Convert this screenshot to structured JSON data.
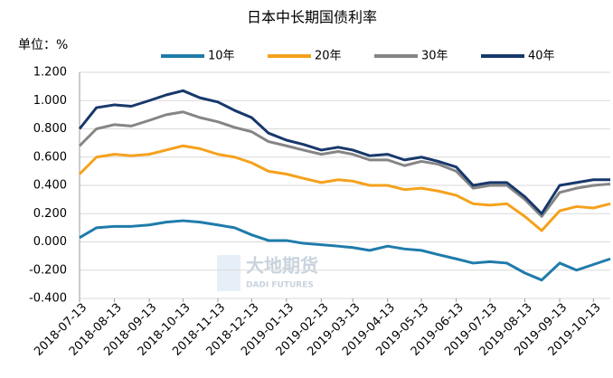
{
  "chart_data": {
    "type": "line",
    "title": "日本中长期国债利率",
    "y_unit": "单位：%",
    "watermark": [
      "大地期货",
      "DADI FUTURES"
    ],
    "x": [
      "2018-07-13",
      "2018-07-28",
      "2018-08-13",
      "2018-08-28",
      "2018-09-13",
      "2018-09-28",
      "2018-10-13",
      "2018-10-28",
      "2018-11-13",
      "2018-11-28",
      "2018-12-13",
      "2018-12-28",
      "2019-01-13",
      "2019-01-28",
      "2019-02-13",
      "2019-02-28",
      "2019-03-13",
      "2019-03-28",
      "2019-04-13",
      "2019-04-28",
      "2019-05-13",
      "2019-05-28",
      "2019-06-13",
      "2019-06-28",
      "2019-07-13",
      "2019-07-28",
      "2019-08-13",
      "2019-08-28",
      "2019-09-13",
      "2019-09-28",
      "2019-10-13",
      "2019-10-28"
    ],
    "series": [
      {
        "name": "10年",
        "color": "#1f7bab",
        "values": [
          0.03,
          0.1,
          0.11,
          0.11,
          0.12,
          0.14,
          0.15,
          0.14,
          0.12,
          0.1,
          0.05,
          0.01,
          0.01,
          -0.01,
          -0.02,
          -0.03,
          -0.04,
          -0.06,
          -0.03,
          -0.05,
          -0.06,
          -0.09,
          -0.12,
          -0.15,
          -0.14,
          -0.15,
          -0.22,
          -0.27,
          -0.15,
          -0.2,
          -0.16,
          -0.12
        ]
      },
      {
        "name": "20年",
        "color": "#f5a11c",
        "values": [
          0.48,
          0.6,
          0.62,
          0.61,
          0.62,
          0.65,
          0.68,
          0.66,
          0.62,
          0.6,
          0.56,
          0.5,
          0.48,
          0.45,
          0.42,
          0.44,
          0.43,
          0.4,
          0.4,
          0.37,
          0.38,
          0.36,
          0.33,
          0.27,
          0.26,
          0.27,
          0.18,
          0.08,
          0.22,
          0.25,
          0.24,
          0.27
        ]
      },
      {
        "name": "30年",
        "color": "#858585",
        "values": [
          0.68,
          0.8,
          0.83,
          0.82,
          0.86,
          0.9,
          0.92,
          0.88,
          0.85,
          0.81,
          0.78,
          0.71,
          0.68,
          0.65,
          0.62,
          0.64,
          0.62,
          0.58,
          0.58,
          0.54,
          0.57,
          0.55,
          0.5,
          0.38,
          0.4,
          0.4,
          0.3,
          0.18,
          0.35,
          0.38,
          0.4,
          0.41
        ]
      },
      {
        "name": "40年",
        "color": "#17386b",
        "values": [
          0.8,
          0.95,
          0.97,
          0.96,
          1.0,
          1.04,
          1.07,
          1.02,
          0.99,
          0.93,
          0.88,
          0.77,
          0.72,
          0.69,
          0.65,
          0.67,
          0.65,
          0.61,
          0.62,
          0.58,
          0.6,
          0.57,
          0.53,
          0.4,
          0.42,
          0.42,
          0.32,
          0.2,
          0.4,
          0.42,
          0.44,
          0.44
        ]
      }
    ],
    "xlim": [
      "2018-07-13",
      "2019-10-28"
    ],
    "xticks": [
      "2018-07-13",
      "2018-08-13",
      "2018-09-13",
      "2018-10-13",
      "2018-11-13",
      "2018-12-13",
      "2019-01-13",
      "2019-02-13",
      "2019-03-13",
      "2019-04-13",
      "2019-05-13",
      "2019-06-13",
      "2019-07-13",
      "2019-08-13",
      "2019-09-13",
      "2019-10-13"
    ],
    "ylim": [
      -0.4,
      1.2
    ],
    "yticks": [
      {
        "value": 1.2,
        "label": "1.200"
      },
      {
        "value": 1.0,
        "label": "1.000"
      },
      {
        "value": 0.8,
        "label": "0.800"
      },
      {
        "value": 0.6,
        "label": "0.600"
      },
      {
        "value": 0.4,
        "label": "0.400"
      },
      {
        "value": 0.2,
        "label": "0.200"
      },
      {
        "value": 0,
        "label": "0.000"
      },
      {
        "value": -0.2,
        "label": "-0.200"
      },
      {
        "value": -0.4,
        "label": "-0.400"
      }
    ],
    "grid": true
  }
}
